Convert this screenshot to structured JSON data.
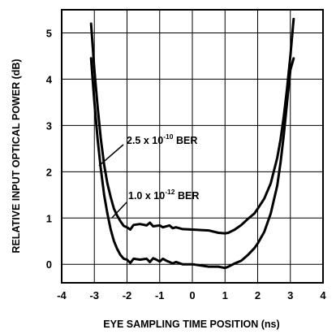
{
  "chart_data": {
    "type": "line",
    "title": "",
    "xlabel": "EYE SAMPLING TIME POSITION (ns)",
    "ylabel": "RELATIVE INPUT OPTICAL POWER (dB)",
    "xlim": [
      -4,
      4
    ],
    "ylim": [
      -0.4,
      5.5
    ],
    "grid": true,
    "legend": "none",
    "x_ticks": [
      "-4",
      "-3",
      "-2",
      "-1",
      "0",
      "1",
      "2",
      "3",
      "4"
    ],
    "y_ticks": [
      "0",
      "1",
      "2",
      "3",
      "4",
      "5"
    ],
    "annotations": [
      {
        "label": "2.5 x 10",
        "exponent": "-10",
        "suffix": " BER",
        "series": "2.5e-10"
      },
      {
        "label": "1.0 x 10",
        "exponent": "-12",
        "suffix": " BER",
        "series": "1.0e-12"
      }
    ],
    "series": [
      {
        "x": [
          -3.1,
          -3.0,
          -2.9,
          -2.8,
          -2.7,
          -2.6,
          -2.5,
          -2.4,
          -2.3,
          -2.2,
          -2.1,
          -2.0,
          -1.9,
          -1.8,
          -1.6,
          -1.4,
          -1.3,
          -1.2,
          -1.0,
          -0.9,
          -0.7,
          -0.6,
          -0.5,
          -0.3,
          0.0,
          0.5,
          0.8,
          1.0,
          1.1,
          1.3,
          1.5,
          1.7,
          1.9,
          2.0,
          2.2,
          2.4,
          2.6,
          2.7,
          2.8,
          2.9,
          3.0,
          3.1
        ],
        "y": [
          5.2,
          4.2,
          3.4,
          2.7,
          2.15,
          1.75,
          1.45,
          1.2,
          1.05,
          0.93,
          0.83,
          0.8,
          0.75,
          0.85,
          0.87,
          0.84,
          0.9,
          0.82,
          0.84,
          0.8,
          0.84,
          0.78,
          0.8,
          0.76,
          0.75,
          0.73,
          0.68,
          0.67,
          0.68,
          0.75,
          0.85,
          0.98,
          1.1,
          1.2,
          1.42,
          1.75,
          2.3,
          2.7,
          3.2,
          3.8,
          4.5,
          5.3
        ]
      },
      {
        "x": [
          -3.1,
          -3.0,
          -2.9,
          -2.8,
          -2.7,
          -2.6,
          -2.5,
          -2.4,
          -2.3,
          -2.2,
          -2.1,
          -2.0,
          -1.9,
          -1.8,
          -1.6,
          -1.4,
          -1.3,
          -1.2,
          -1.1,
          -1.0,
          -0.9,
          -0.8,
          -0.6,
          -0.5,
          -0.3,
          0.0,
          0.5,
          0.8,
          1.0,
          1.1,
          1.3,
          1.5,
          1.7,
          1.9,
          2.0,
          2.2,
          2.4,
          2.6,
          2.7,
          2.8,
          2.9,
          3.0,
          3.1
        ],
        "y": [
          4.45,
          3.5,
          2.7,
          2.05,
          1.5,
          1.1,
          0.75,
          0.5,
          0.33,
          0.2,
          0.12,
          0.1,
          0.03,
          0.12,
          0.1,
          0.12,
          0.05,
          0.13,
          0.1,
          0.06,
          0.12,
          0.08,
          0.02,
          0.05,
          0.0,
          0.0,
          -0.05,
          -0.05,
          -0.08,
          -0.05,
          0.02,
          0.08,
          0.2,
          0.35,
          0.45,
          0.7,
          1.1,
          1.7,
          2.2,
          2.8,
          3.5,
          4.2,
          4.45
        ]
      }
    ]
  }
}
